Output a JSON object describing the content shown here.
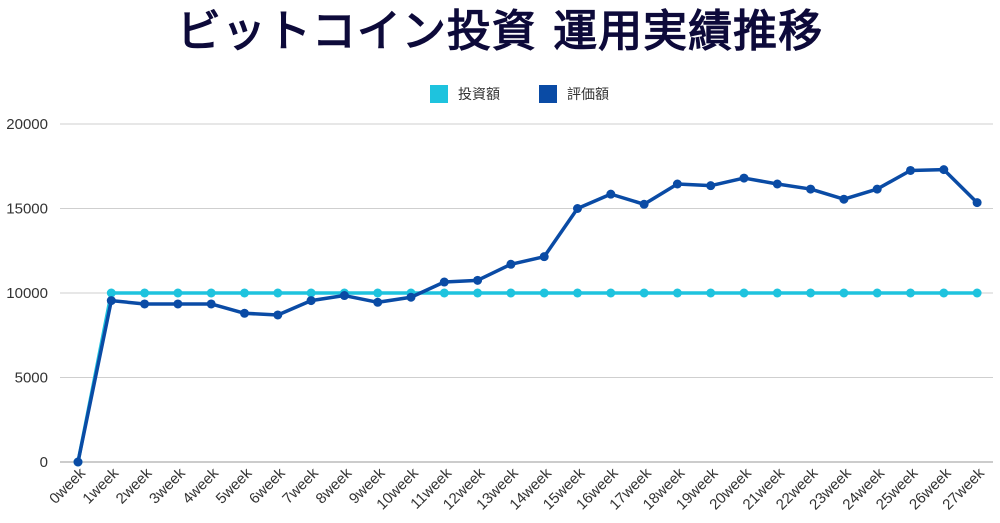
{
  "chart_data": {
    "type": "line",
    "title": "ビットコイン投資 運用実績推移",
    "xlabel": "",
    "ylabel": "",
    "ylim": [
      0,
      20000
    ],
    "yticks": [
      "0",
      "5000",
      "10000",
      "15000",
      "20000"
    ],
    "grid": true,
    "legend_position": "top-center",
    "categories": [
      "0week",
      "1week",
      "2week",
      "3week",
      "4week",
      "5week",
      "6week",
      "7week",
      "8week",
      "9week",
      "10week",
      "11week",
      "12week",
      "13week",
      "14week",
      "15week",
      "16week",
      "17week",
      "18week",
      "19week",
      "20week",
      "21week",
      "22week",
      "23week",
      "24week",
      "25week",
      "26week",
      "27week"
    ],
    "series": [
      {
        "name": "投資額",
        "color": "#1ec3de",
        "values": [
          0,
          10000,
          10000,
          10000,
          10000,
          10000,
          10000,
          10000,
          10000,
          10000,
          10000,
          10000,
          10000,
          10000,
          10000,
          10000,
          10000,
          10000,
          10000,
          10000,
          10000,
          10000,
          10000,
          10000,
          10000,
          10000,
          10000,
          10000
        ]
      },
      {
        "name": "評価額",
        "color": "#0a4ba5",
        "values": [
          0,
          9550,
          9350,
          9350,
          9350,
          8800,
          8700,
          9550,
          9850,
          9450,
          9750,
          10650,
          10750,
          11700,
          12150,
          15000,
          15850,
          15250,
          16450,
          16350,
          16800,
          16450,
          16150,
          15550,
          16150,
          17250,
          17300,
          15350
        ]
      }
    ]
  }
}
